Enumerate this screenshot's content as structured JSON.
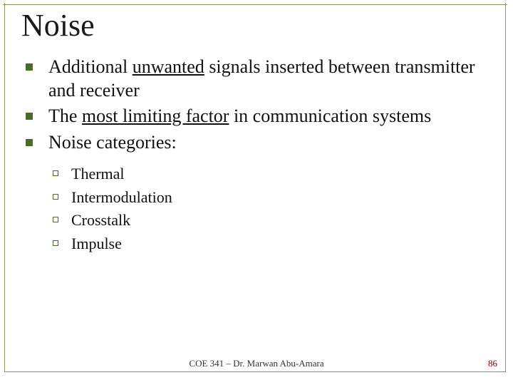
{
  "title": "Noise",
  "bullets": [
    {
      "pre": "Additional ",
      "u": "unwanted",
      "post": " signals inserted between transmitter and receiver"
    },
    {
      "pre": "The ",
      "u": "most limiting factor",
      "post": " in communication systems"
    },
    {
      "pre": "Noise categories:",
      "u": "",
      "post": ""
    }
  ],
  "sub": [
    "Thermal",
    "Intermodulation",
    "Crosstalk",
    "Impulse"
  ],
  "footer": "COE 341 – Dr. Marwan Abu-Amara",
  "page": "86",
  "colors": {
    "border": "#8a9a5b",
    "bullet": "#4a6b2a",
    "pagenum": "#8b0000"
  }
}
